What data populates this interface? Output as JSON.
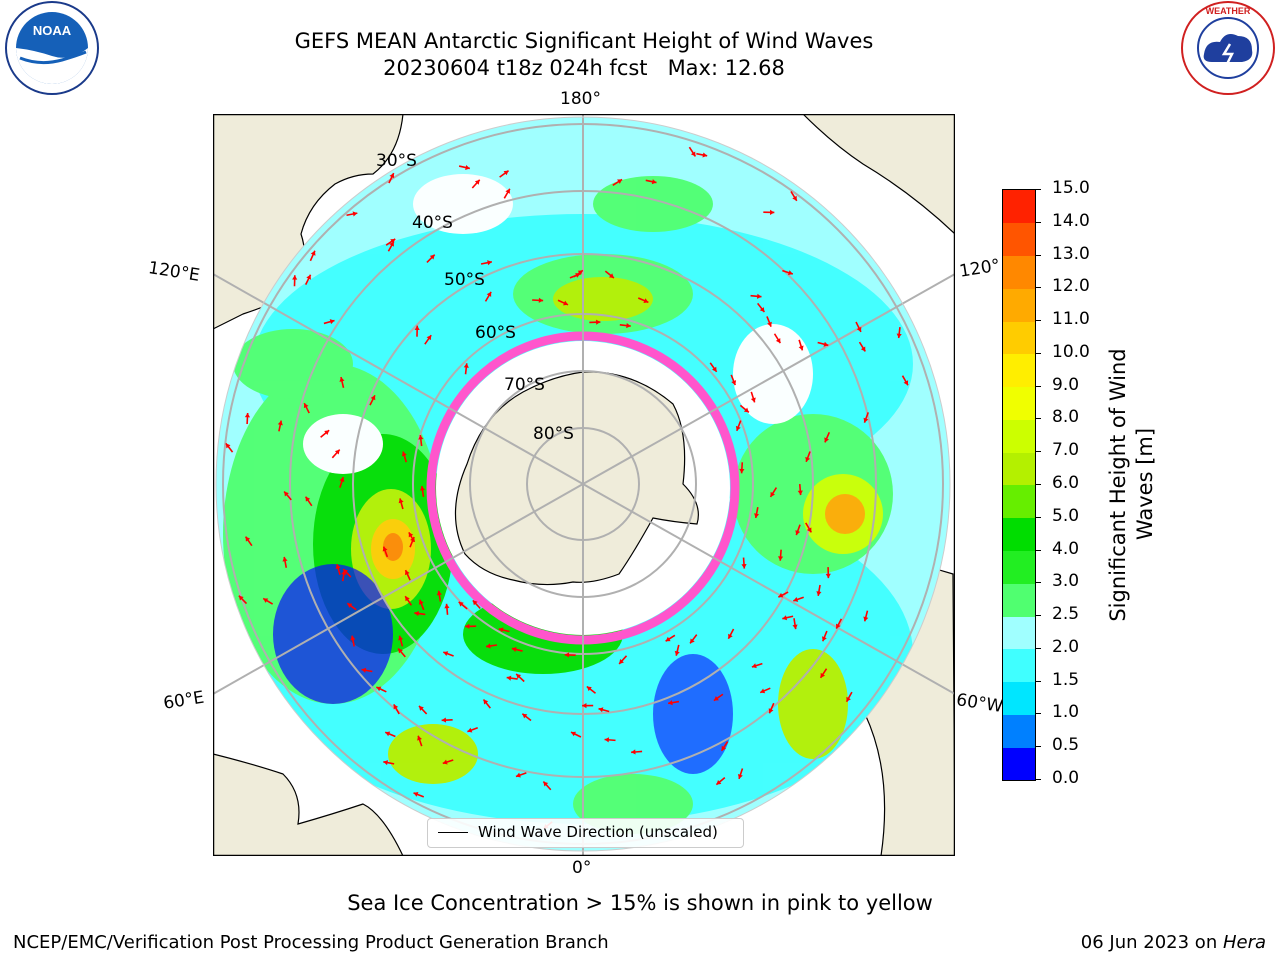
{
  "title_line1": "GEFS MEAN Antarctic Significant Height of Wind Waves",
  "title_line2": "20230604 t18z 024h fcst   Max: 12.68",
  "logos": {
    "left": "NOAA",
    "right": "NATIONAL WEATHER SERVICE"
  },
  "lon_labels": {
    "top": "180°",
    "bottom": "0°",
    "left_upper": "120°E",
    "left_lower": "60°E",
    "right_upper": "120°",
    "right_lower": "60°W"
  },
  "lat_labels": [
    "30°S",
    "40°S",
    "50°S",
    "60°S",
    "70°S",
    "80°S"
  ],
  "legend_label": "Wind Wave Direction (unscaled)",
  "colorbar": {
    "label_line1": "Significant Height of Wind",
    "label_line2": "Waves [m]",
    "ticks": [
      "0.0",
      "0.5",
      "1.0",
      "1.5",
      "2.0",
      "2.5",
      "3.0",
      "4.0",
      "5.0",
      "6.0",
      "7.0",
      "8.0",
      "9.0",
      "10.0",
      "11.0",
      "12.0",
      "13.0",
      "14.0",
      "15.0"
    ],
    "colors": [
      "#0000ff",
      "#0080ff",
      "#00e6ff",
      "#40ffff",
      "#a0ffff",
      "#50ff70",
      "#22ee22",
      "#00dd00",
      "#66ee00",
      "#b4f000",
      "#ccff00",
      "#f0ff00",
      "#ffee00",
      "#ffcc00",
      "#ffaa00",
      "#ff8800",
      "#ff5500",
      "#ff2200"
    ]
  },
  "caption": "Sea Ice Concentration > 15% is shown in pink to yellow",
  "footer_left": "NCEP/EMC/Verification Post Processing Product Generation Branch",
  "footer_right_prefix": "06 Jun 2023 on ",
  "footer_right_host": "Hera"
}
